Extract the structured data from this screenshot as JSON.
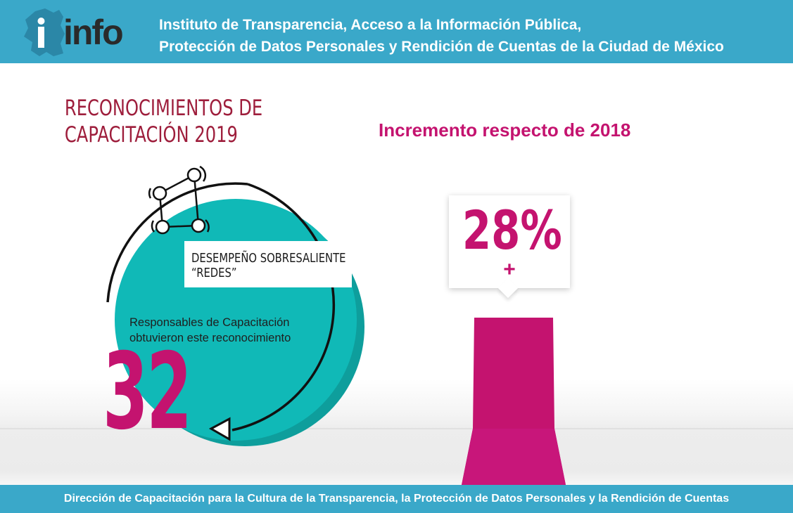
{
  "header": {
    "logo_text": "info",
    "title_line1": "Instituto de Transparencia, Acceso a la Información Pública,",
    "title_line2": "Protección de Datos Personales y Rendición de Cuentas de la Ciudad de México",
    "color": "#3aa8c9"
  },
  "main": {
    "title_line1": "RECONOCIMIENTOS DE",
    "title_line2": "CAPACITACIÓN 2019",
    "award_line1": "DESEMPEÑO SOBRESALIENTE",
    "award_line2": "“REDES”",
    "description_line1": "Responsables de Capacitación",
    "description_line2": "obtuvieron este reconocimiento",
    "count": "32",
    "network_icon": "network-nodes-icon",
    "accent_color": "#c4136f",
    "circle_color": "#10b9b7"
  },
  "increment": {
    "title": "Incremento respecto de 2018",
    "percent_label": "28%",
    "sign": "+",
    "percent_value": 28
  },
  "footer": {
    "text": "Dirección de Capacitación para la Cultura de la Transparencia, la Protección de Datos Personales y la Rendición de Cuentas"
  }
}
